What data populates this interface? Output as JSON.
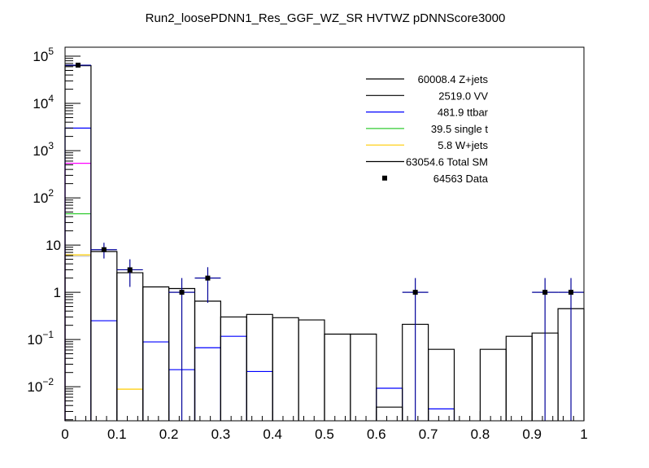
{
  "chart_data": {
    "type": "bar",
    "title": "Run2_loosePDNN1_Res_GGF_WZ_SR HVTWZ  pDNNScore3000",
    "xlabel": "",
    "ylabel": "",
    "xlim": [
      0,
      1
    ],
    "ylim": [
      0.0019,
      155000
    ],
    "yscale": "log",
    "grid": false,
    "legend_position": "top-right",
    "bin_edges": [
      0,
      0.05,
      0.1,
      0.15,
      0.2,
      0.25,
      0.3,
      0.35,
      0.4,
      0.45,
      0.5,
      0.55,
      0.6,
      0.65,
      0.7,
      0.75,
      0.8,
      0.85,
      0.9,
      0.95,
      1.0
    ],
    "x_tick_labels": [
      "0",
      "0.1",
      "0.2",
      "0.3",
      "0.4",
      "0.5",
      "0.6",
      "0.7",
      "0.8",
      "0.9",
      "1"
    ],
    "y_tick_labels": [
      {
        "value": 100000,
        "base": "10",
        "exp": "5"
      },
      {
        "value": 10000,
        "base": "10",
        "exp": "4"
      },
      {
        "value": 1000,
        "base": "10",
        "exp": "3"
      },
      {
        "value": 100,
        "base": "10",
        "exp": "2"
      },
      {
        "value": 10,
        "base": "10",
        "exp": ""
      },
      {
        "value": 1,
        "base": "1",
        "exp": ""
      },
      {
        "value": 0.1,
        "base": "10",
        "exp": "−1"
      },
      {
        "value": 0.01,
        "base": "10",
        "exp": "−2"
      }
    ],
    "series": [
      {
        "name": "Total SM",
        "color": "#000000",
        "values": [
          63054.6,
          7.3,
          2.6,
          1.3,
          1.2,
          0.65,
          0.3,
          0.34,
          0.29,
          0.26,
          0.13,
          0.13,
          0.0037,
          0.21,
          0.062,
          0,
          0.062,
          0.117,
          0.137,
          0.45
        ]
      },
      {
        "name": "ttbar",
        "color": "#0000ff",
        "values": [
          3000,
          0.25,
          0,
          0.089,
          0.023,
          0.067,
          0.117,
          0.021,
          0,
          0,
          0,
          0,
          0.0093,
          0,
          0.0034,
          0,
          0,
          0,
          0,
          0
        ]
      },
      {
        "name": "stack-magenta",
        "color": "#ff00ff",
        "values": [
          540,
          0,
          0,
          0,
          0,
          0,
          0,
          0,
          0,
          0,
          0,
          0,
          0,
          0,
          0,
          0,
          0,
          0,
          0,
          0
        ]
      },
      {
        "name": "single t",
        "color": "#33cc33",
        "values": [
          46,
          0,
          0,
          0,
          0,
          0,
          0,
          0,
          0,
          0,
          0,
          0,
          0,
          0,
          0,
          0,
          0,
          0,
          0,
          0
        ]
      },
      {
        "name": "W+jets",
        "color": "#ffcc00",
        "values": [
          6.2,
          0,
          0.0089,
          0,
          0,
          0,
          0,
          0,
          0,
          0,
          0,
          0,
          0,
          0,
          0,
          0,
          0,
          0,
          0,
          0
        ]
      },
      {
        "name": "stack-gray",
        "color": "#c0c0c0",
        "values": [
          5.8,
          0,
          0,
          0,
          0,
          0,
          0,
          0,
          0,
          0,
          0,
          0,
          0,
          0,
          0,
          0,
          0,
          0,
          0,
          0
        ]
      }
    ],
    "data_points": [
      {
        "x": 0.025,
        "y": 64563,
        "lo": 64309,
        "hi": 64817
      },
      {
        "x": 0.075,
        "y": 8,
        "lo": 5.2,
        "hi": 11.2
      },
      {
        "x": 0.125,
        "y": 3,
        "lo": 1.3,
        "hi": 5.0
      },
      {
        "x": 0.225,
        "y": 1,
        "lo": 0,
        "hi": 2.0
      },
      {
        "x": 0.275,
        "y": 2,
        "lo": 0.6,
        "hi": 3.4
      },
      {
        "x": 0.675,
        "y": 1,
        "lo": 0,
        "hi": 2.0
      },
      {
        "x": 0.925,
        "y": 1,
        "lo": 0,
        "hi": 2.0
      },
      {
        "x": 0.975,
        "y": 1,
        "lo": 0,
        "hi": 2.0
      }
    ],
    "legend": [
      {
        "label": "60008.4 Z+jets",
        "color": "#000000",
        "kind": "line"
      },
      {
        "label": "2519.0 VV",
        "color": "#000000",
        "kind": "line"
      },
      {
        "label": "481.9 ttbar",
        "color": "#0000ff",
        "kind": "line"
      },
      {
        "label": "39.5 single t",
        "color": "#33cc33",
        "kind": "line"
      },
      {
        "label": "5.8 W+jets",
        "color": "#ffcc00",
        "kind": "line"
      },
      {
        "label": "63054.6 Total SM",
        "color": "#000000",
        "kind": "line"
      },
      {
        "label": "64563 Data",
        "color": "#000000",
        "kind": "marker"
      }
    ]
  }
}
